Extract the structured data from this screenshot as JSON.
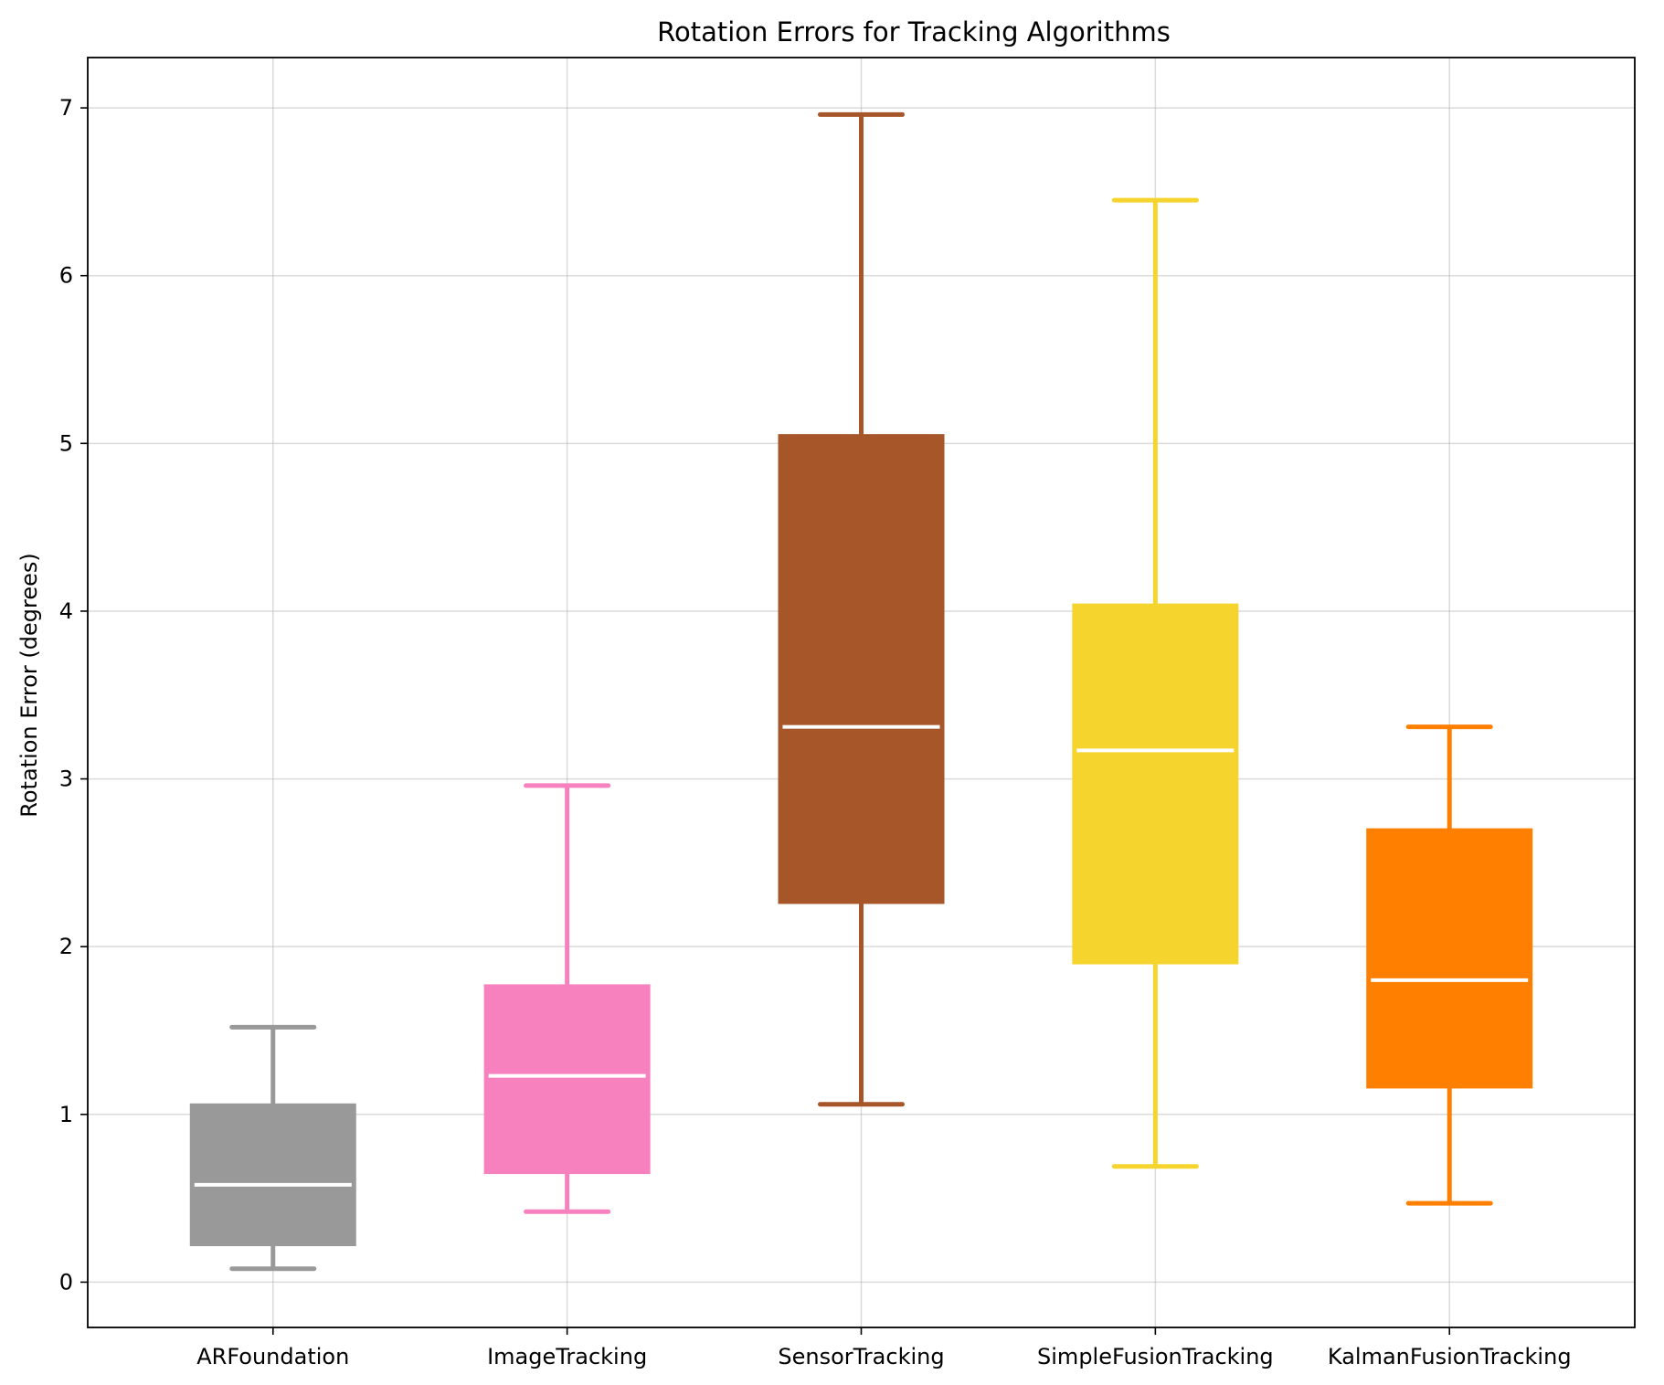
{
  "chart_data": {
    "type": "box",
    "title": "Rotation Errors for Tracking Algorithms",
    "xlabel": "",
    "ylabel": "Rotation Error (degrees)",
    "ylim": [
      -0.27,
      7.3
    ],
    "yticks": [
      0,
      1,
      2,
      3,
      4,
      5,
      6,
      7
    ],
    "grid": true,
    "median_color": "#ffffff",
    "series": [
      {
        "category": "ARFoundation",
        "color": "#999999",
        "whisker_low": 0.08,
        "q1": 0.22,
        "median": 0.58,
        "q3": 1.06,
        "whisker_high": 1.52
      },
      {
        "category": "ImageTracking",
        "color": "#f781bf",
        "whisker_low": 0.42,
        "q1": 0.65,
        "median": 1.23,
        "q3": 1.77,
        "whisker_high": 2.96
      },
      {
        "category": "SensorTracking",
        "color": "#a65628",
        "whisker_low": 1.06,
        "q1": 2.26,
        "median": 3.31,
        "q3": 5.05,
        "whisker_high": 6.96
      },
      {
        "category": "SimpleFusionTracking",
        "color": "#f5d42e",
        "whisker_low": 0.69,
        "q1": 1.9,
        "median": 3.17,
        "q3": 4.04,
        "whisker_high": 6.45
      },
      {
        "category": "KalmanFusionTracking",
        "color": "#ff7f00",
        "whisker_low": 0.47,
        "q1": 1.16,
        "median": 1.8,
        "q3": 2.7,
        "whisker_high": 3.31
      }
    ]
  }
}
